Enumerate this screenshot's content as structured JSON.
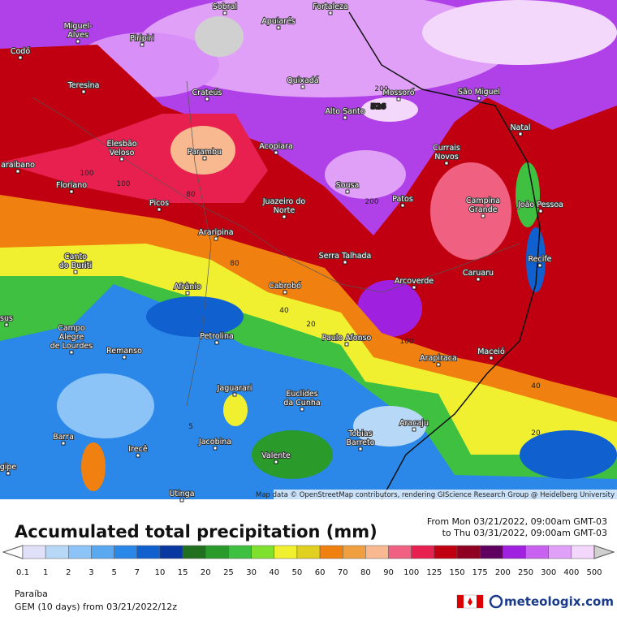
{
  "map": {
    "places": [
      [
        "Sobral"
      ],
      [
        "Fortaleza"
      ],
      [
        "Miguel-",
        "Alves"
      ],
      [
        "Piripiri"
      ],
      [
        "Apuiarés"
      ],
      [
        "Codó"
      ],
      [
        "Teresina"
      ],
      [
        "Quixadá"
      ],
      [
        "Crateús"
      ],
      [
        "Mossoró"
      ],
      [
        "São Miguel"
      ],
      [
        "Alto Santo"
      ],
      [
        "Natal"
      ],
      [
        "Elesbão",
        "Veloso"
      ],
      [
        "Acopiara"
      ],
      [
        "Currais",
        "Novos"
      ],
      [
        "Parambu"
      ],
      [
        "araibano"
      ],
      [
        "Floriano"
      ],
      [
        "Sousa"
      ],
      [
        "Patos"
      ],
      [
        "Campina",
        "Grande"
      ],
      [
        "João Pessoa"
      ],
      [
        "Juazeiro do",
        "Norte"
      ],
      [
        "Picos"
      ],
      [
        "Araripina"
      ],
      [
        "Canto",
        "do Buriti"
      ],
      [
        "Serra Talhada"
      ],
      [
        "Recife"
      ],
      [
        "Caruaru"
      ],
      [
        "Arcoverde"
      ],
      [
        "Afrânio"
      ],
      [
        "Cabrobó"
      ],
      [
        "sus"
      ],
      [
        "Campo",
        "Alegre",
        "de Lourdes"
      ],
      [
        "Petrolina"
      ],
      [
        "Paulo Afonso"
      ],
      [
        "Remanso"
      ],
      [
        "Maceió"
      ],
      [
        "Arapiraca"
      ],
      [
        "Jaguarari"
      ],
      [
        "Euclides",
        "da Cunha"
      ],
      [
        "Aracaju"
      ],
      [
        "gipe"
      ],
      [
        "Barra"
      ],
      [
        "Tobias",
        "Barreto"
      ],
      [
        "Jacobina"
      ],
      [
        "Irecê"
      ],
      [
        "Valente"
      ],
      [
        "Utinga"
      ]
    ],
    "contour_labels": [
      "526",
      "200",
      "100",
      "100",
      "80",
      "80",
      "200",
      "40",
      "20",
      "100",
      "40",
      "20",
      "5"
    ],
    "attribution": "Map data © OpenStreetMap contributors, rendering GIScience Research Group @ Heidelberg University"
  },
  "header": {
    "title": "Accumulated total precipitation (mm)",
    "from": "From Mon 03/21/2022, 09:00am GMT-03",
    "to": "to Thu 03/31/2022, 09:00am GMT-03"
  },
  "legend": {
    "labels": [
      0.1,
      1,
      2,
      3,
      5,
      7,
      10,
      15,
      20,
      25,
      30,
      40,
      50,
      60,
      70,
      80,
      90,
      100,
      125,
      150,
      175,
      200,
      250,
      300,
      400,
      500
    ],
    "colors": [
      "#e0e0f8",
      "#b8d8f8",
      "#8cc4f8",
      "#5aa8f0",
      "#2b88e8",
      "#1060d0",
      "#0838a0",
      "#207020",
      "#2a9a2a",
      "#40c040",
      "#80e030",
      "#f0f030",
      "#e0d020",
      "#f08010",
      "#f0a040",
      "#f8b890",
      "#f06080",
      "#e82050",
      "#c00010",
      "#900020",
      "#600060",
      "#a020e0",
      "#c860f0",
      "#e0a0f8",
      "#f4d8fc",
      "#d0d0d0"
    ]
  },
  "footer": {
    "region": "Paraíba",
    "model": "GEM (10 days) from 03/21/2022/12z",
    "brand": "meteologix.com"
  }
}
